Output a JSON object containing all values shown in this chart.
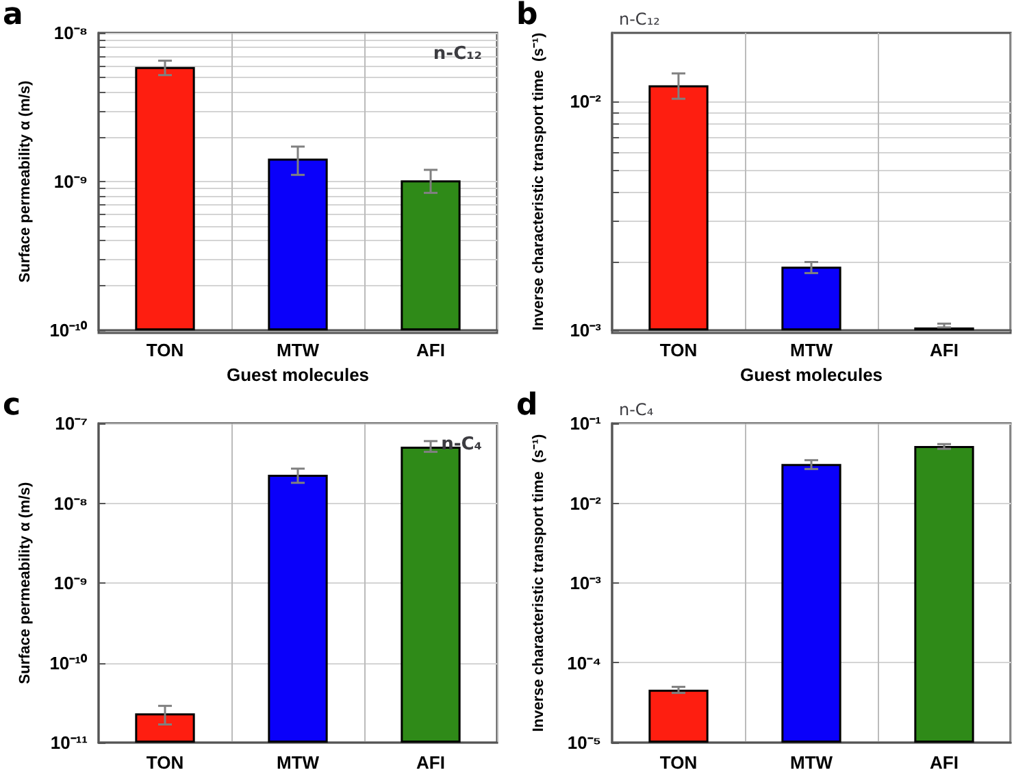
{
  "chart_data": [
    {
      "type": "bar",
      "title": "n-C₁₂",
      "xlabel": "Guest molecules",
      "ylabel": "Surface permeability α (m/s)",
      "annotations": [
        "a"
      ],
      "log": "y",
      "grid": true,
      "categories": [
        "TON",
        "MTW",
        "AFI"
      ],
      "values": [
        5.9e-09,
        1.43e-09,
        1.02e-09
      ],
      "colors": [
        "#fe1e10",
        "#0a00fa",
        "#2f8a18"
      ],
      "errors": [
        [
          5.2e-09,
          6.5e-09
        ],
        [
          1.11e-09,
          1.72e-09
        ],
        [
          8.4e-10,
          1.2e-09
        ]
      ],
      "ylim": [
        1e-10,
        1e-08
      ],
      "yticks": [
        {
          "value": 1e-10,
          "label": "10⁻¹⁰"
        },
        {
          "value": 2e-10,
          "label": null
        },
        {
          "value": 3e-10,
          "label": null
        },
        {
          "value": 4e-10,
          "label": null
        },
        {
          "value": 5e-10,
          "label": null
        },
        {
          "value": 6e-10,
          "label": null
        },
        {
          "value": 7e-10,
          "label": null
        },
        {
          "value": 8e-10,
          "label": null
        },
        {
          "value": 9e-10,
          "label": null
        },
        {
          "value": 1e-09,
          "label": "10⁻⁹"
        },
        {
          "value": 2e-09,
          "label": null
        },
        {
          "value": 3e-09,
          "label": null
        },
        {
          "value": 4e-09,
          "label": null
        },
        {
          "value": 5e-09,
          "label": null
        },
        {
          "value": 6e-09,
          "label": null
        },
        {
          "value": 7e-09,
          "label": null
        },
        {
          "value": 8e-09,
          "label": null
        },
        {
          "value": 9e-09,
          "label": null
        },
        {
          "value": 1e-08,
          "label": "10⁻⁸"
        }
      ]
    },
    {
      "type": "bar",
      "title": "n-C₁₂",
      "xlabel": "Guest molecules",
      "ylabel": "Inverse characteristic transport time  (s⁻¹)",
      "annotations": [
        "b"
      ],
      "log": "y",
      "grid": true,
      "categories": [
        "TON",
        "MTW",
        "AFI"
      ],
      "values": [
        0.0118,
        0.0019,
        0.00103
      ],
      "colors": [
        "#fe1e10",
        "#0a00fa",
        "#2f8a18"
      ],
      "errors": [
        [
          0.0103,
          0.0133
        ],
        [
          0.00178,
          0.00199
        ],
        [
          0.00103,
          0.00107
        ]
      ],
      "ylim": [
        0.001,
        0.02
      ],
      "yticks": [
        {
          "value": 0.001,
          "label": "10⁻³"
        },
        {
          "value": 0.002,
          "label": null
        },
        {
          "value": 0.003,
          "label": null
        },
        {
          "value": 0.004,
          "label": null
        },
        {
          "value": 0.005,
          "label": null
        },
        {
          "value": 0.006,
          "label": null
        },
        {
          "value": 0.007,
          "label": null
        },
        {
          "value": 0.008,
          "label": null
        },
        {
          "value": 0.009,
          "label": null
        },
        {
          "value": 0.01,
          "label": "10⁻²"
        }
      ]
    },
    {
      "type": "bar",
      "title": "n-C₄",
      "ylabel": "Surface permeability α (m/s)",
      "annotations": [
        "c"
      ],
      "log": "y",
      "grid": true,
      "categories": [
        "TON",
        "MTW",
        "AFI"
      ],
      "values": [
        2.33e-11,
        2.27e-08,
        5.1e-08
      ],
      "colors": [
        "#fe1e10",
        "#0a00fa",
        "#2f8a18"
      ],
      "errors": [
        [
          1.69e-11,
          2.89e-11
        ],
        [
          1.8e-08,
          2.71e-08
        ],
        [
          4.4e-08,
          6e-08
        ]
      ],
      "ylim": [
        1e-11,
        1e-07
      ],
      "yticks": [
        {
          "value": 1e-11,
          "label": "10⁻¹¹"
        },
        {
          "value": 1e-10,
          "label": "10⁻¹⁰"
        },
        {
          "value": 1e-09,
          "label": "10⁻⁹"
        },
        {
          "value": 1e-08,
          "label": "10⁻⁸"
        },
        {
          "value": 1e-07,
          "label": "10⁻⁷"
        }
      ]
    },
    {
      "type": "bar",
      "title": "n-C₄",
      "ylabel": "Inverse characteristic transport time  (s⁻¹)",
      "annotations": [
        "d"
      ],
      "log": "y",
      "grid": true,
      "categories": [
        "TON",
        "MTW",
        "AFI"
      ],
      "values": [
        4.6e-05,
        0.031,
        0.052
      ],
      "colors": [
        "#fe1e10",
        "#0a00fa",
        "#2f8a18"
      ],
      "errors": [
        [
          4.2e-05,
          5e-05
        ],
        [
          0.0268,
          0.0346
        ],
        [
          0.048,
          0.055
        ]
      ],
      "ylim": [
        1e-05,
        0.1
      ],
      "yticks": [
        {
          "value": 1e-05,
          "label": "10⁻⁵"
        },
        {
          "value": 0.0001,
          "label": "10⁻⁴"
        },
        {
          "value": 0.001,
          "label": "10⁻³"
        },
        {
          "value": 0.01,
          "label": "10⁻²"
        },
        {
          "value": 0.1,
          "label": "10⁻¹"
        }
      ]
    }
  ]
}
